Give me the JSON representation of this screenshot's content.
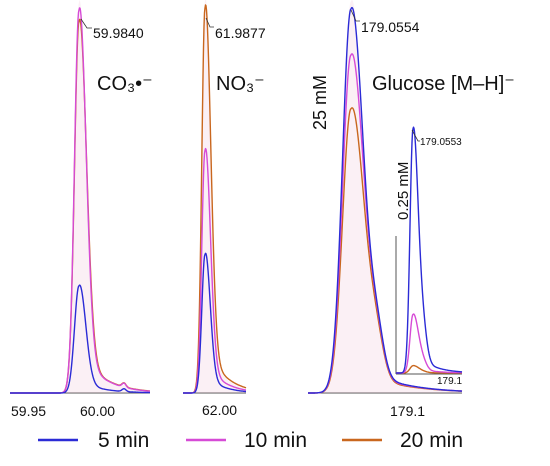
{
  "chart_data": [
    {
      "type": "line",
      "title": "CO₃•⁻",
      "x_ticks": [
        "59.95",
        "60.00"
      ],
      "peak_label": "59.9840",
      "series": [
        {
          "name": "5 min",
          "peak_mz": 59.984,
          "relative_height": 0.28
        },
        {
          "name": "10 min",
          "peak_mz": 59.984,
          "relative_height": 1.0
        },
        {
          "name": "20 min",
          "peak_mz": 59.984,
          "relative_height": 0.97
        }
      ]
    },
    {
      "type": "line",
      "title": "NO₃⁻",
      "x_ticks": [
        "62.00"
      ],
      "peak_label": "61.9877",
      "series": [
        {
          "name": "5 min",
          "peak_mz": 61.9877,
          "relative_height": 0.36
        },
        {
          "name": "10 min",
          "peak_mz": 61.9877,
          "relative_height": 0.63
        },
        {
          "name": "20 min",
          "peak_mz": 61.9877,
          "relative_height": 1.0
        }
      ]
    },
    {
      "type": "line",
      "title": "Glucose [M–H]⁻",
      "concentration_label": "25 mM",
      "x_ticks": [
        "179.1"
      ],
      "peak_label": "179.0554",
      "series": [
        {
          "name": "5 min",
          "peak_mz": 179.0554,
          "relative_height": 1.0
        },
        {
          "name": "10 min",
          "peak_mz": 179.0554,
          "relative_height": 0.88
        },
        {
          "name": "20 min",
          "peak_mz": 179.0554,
          "relative_height": 0.74
        }
      ]
    },
    {
      "type": "line",
      "title": "",
      "concentration_label": "0.25 mM",
      "x_ticks": [
        "179.1"
      ],
      "peak_label": "179.0553",
      "series": [
        {
          "name": "5 min",
          "peak_mz": 179.0553,
          "relative_height": 1.0
        },
        {
          "name": "10 min",
          "peak_mz": 179.0553,
          "relative_height": 0.24
        },
        {
          "name": "20 min",
          "peak_mz": 179.0553,
          "relative_height": 0.03
        }
      ]
    }
  ],
  "legend": [
    {
      "label": "5 min",
      "color": "#2b2bd6"
    },
    {
      "label": "10 min",
      "color": "#d64bd6"
    },
    {
      "label": "20 min",
      "color": "#c9671e"
    }
  ]
}
